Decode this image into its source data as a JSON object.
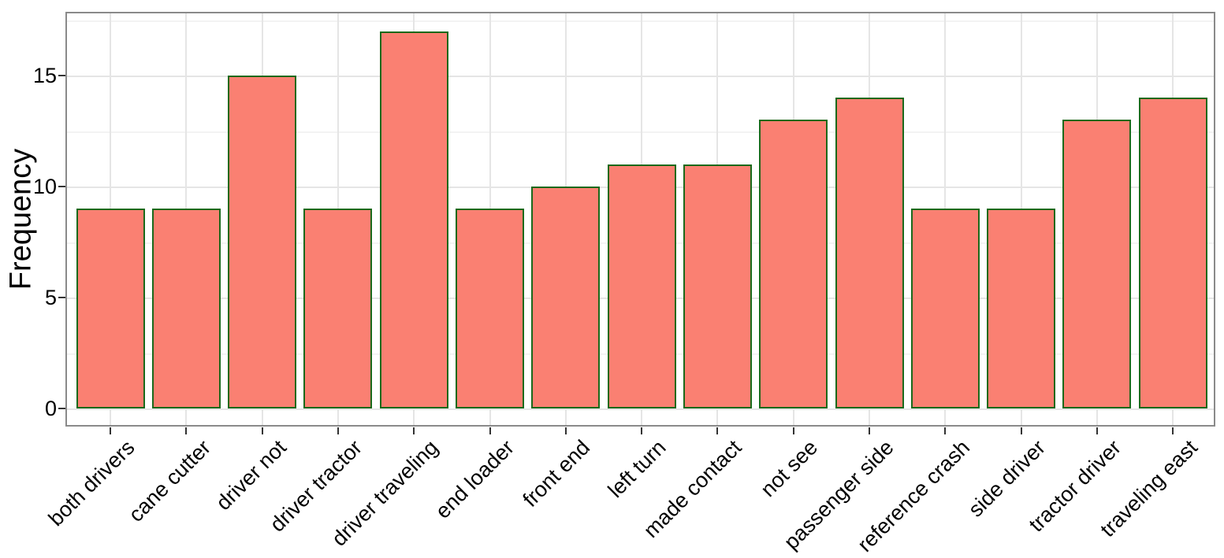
{
  "chart_data": {
    "type": "bar",
    "title": "",
    "xlabel": "",
    "ylabel": "Frequency",
    "categories": [
      "both drivers",
      "cane cutter",
      "driver not",
      "driver tractor",
      "driver traveling",
      "end loader",
      "front end",
      "left turn",
      "made contact",
      "not see",
      "passenger side",
      "reference crash",
      "side driver",
      "tractor driver",
      "traveling east"
    ],
    "values": [
      9,
      9,
      15,
      9,
      17,
      9,
      10,
      11,
      11,
      13,
      14,
      9,
      9,
      13,
      14
    ],
    "ylim": [
      0,
      17.85
    ],
    "yticks": [
      0,
      5,
      10,
      15
    ],
    "yticks_minor": [
      2.5,
      7.5,
      12.5,
      17.5
    ],
    "x_label_angle": -45,
    "grid": "on",
    "legend": "none",
    "colors": {
      "bar_fill": "#FA8072",
      "bar_stroke": "#1B691B",
      "panel_border": "#8A8A8A",
      "grid_major": "#E5E5E5",
      "grid_minor": "#F3F3F3",
      "tick_mark": "#333333",
      "text": "#000000",
      "background": "#FFFFFF"
    }
  }
}
